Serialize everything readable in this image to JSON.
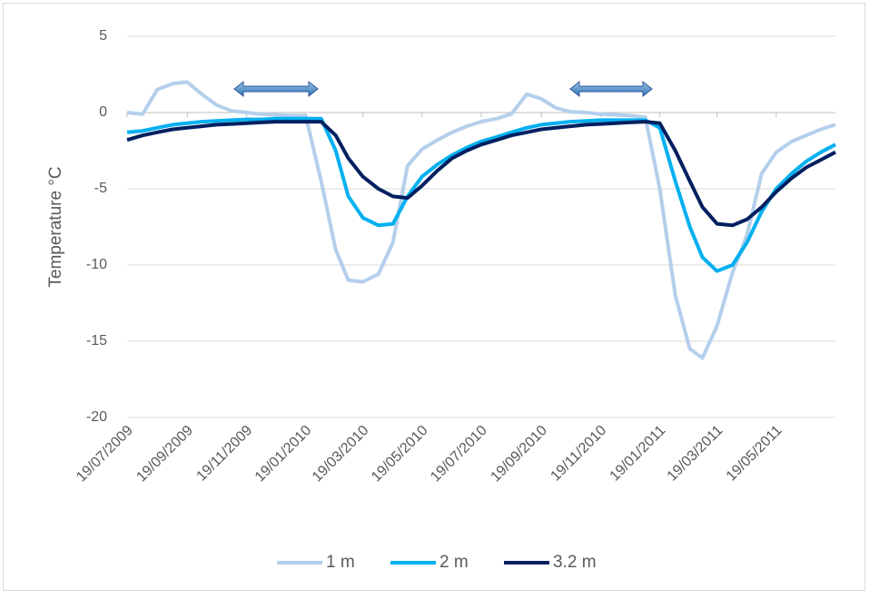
{
  "chart_data": {
    "type": "line",
    "y_label": "Temperature °C",
    "x": [
      "19/07/2009",
      "04/08/2009",
      "19/08/2009",
      "04/09/2009",
      "19/09/2009",
      "04/10/2009",
      "19/10/2009",
      "04/11/2009",
      "19/11/2009",
      "04/12/2009",
      "19/12/2009",
      "04/01/2010",
      "19/01/2010",
      "04/02/2010",
      "19/02/2010",
      "04/03/2010",
      "19/03/2010",
      "04/04/2010",
      "19/04/2010",
      "04/05/2010",
      "19/05/2010",
      "04/06/2010",
      "19/06/2010",
      "04/07/2010",
      "19/07/2010",
      "04/08/2010",
      "19/08/2010",
      "04/09/2010",
      "19/09/2010",
      "04/10/2010",
      "19/10/2010",
      "04/11/2010",
      "19/11/2010",
      "04/12/2010",
      "19/12/2010",
      "04/01/2011",
      "19/01/2011",
      "04/02/2011",
      "19/02/2011",
      "04/03/2011",
      "19/03/2011",
      "04/04/2011",
      "19/04/2011",
      "04/05/2011",
      "19/05/2011",
      "04/06/2011",
      "19/06/2011",
      "04/07/2011",
      "19/07/2011"
    ],
    "series": [
      {
        "name": "1 m",
        "color": "#b4cfeb",
        "values": [
          0,
          -0.1,
          1.5,
          1.9,
          2.0,
          1.2,
          0.5,
          0.1,
          0,
          -0.1,
          -0.15,
          -0.2,
          -0.2,
          -4.5,
          -9,
          -11,
          -11.1,
          -10.6,
          -8.5,
          -3.5,
          -2.4,
          -1.8,
          -1.3,
          -0.9,
          -0.6,
          -0.4,
          -0.1,
          1.2,
          0.9,
          0.3,
          0.05,
          0,
          -0.1,
          -0.15,
          -0.2,
          -0.3,
          -5,
          -12,
          -15.5,
          -16.1,
          -14,
          -10.5,
          -8,
          -4,
          -2.6,
          -1.9,
          -1.5,
          -1.1,
          -0.8
        ]
      },
      {
        "name": "2 m",
        "color": "#00b0f0",
        "values": [
          -1.3,
          -1.2,
          -1.0,
          -0.8,
          -0.7,
          -0.6,
          -0.55,
          -0.5,
          -0.45,
          -0.45,
          -0.4,
          -0.4,
          -0.4,
          -0.4,
          -2.5,
          -5.5,
          -6.9,
          -7.4,
          -7.3,
          -5.5,
          -4.2,
          -3.4,
          -2.8,
          -2.3,
          -1.9,
          -1.6,
          -1.3,
          -1.0,
          -0.8,
          -0.7,
          -0.6,
          -0.55,
          -0.5,
          -0.5,
          -0.5,
          -0.5,
          -1.0,
          -4.5,
          -7.5,
          -9.5,
          -10.4,
          -10,
          -8.5,
          -6.5,
          -5,
          -4,
          -3.2,
          -2.6,
          -2.1
        ]
      },
      {
        "name": "3.2 m",
        "color": "#002060",
        "values": [
          -1.8,
          -1.5,
          -1.3,
          -1.1,
          -1.0,
          -0.9,
          -0.8,
          -0.75,
          -0.7,
          -0.65,
          -0.6,
          -0.6,
          -0.6,
          -0.6,
          -1.5,
          -3.0,
          -4.2,
          -5.0,
          -5.5,
          -5.6,
          -4.8,
          -3.8,
          -3.0,
          -2.5,
          -2.1,
          -1.8,
          -1.5,
          -1.3,
          -1.1,
          -1.0,
          -0.9,
          -0.8,
          -0.75,
          -0.7,
          -0.65,
          -0.6,
          -0.7,
          -2.5,
          -4.5,
          -6.2,
          -7.3,
          -7.4,
          -7.0,
          -6.2,
          -5.2,
          -4.3,
          -3.6,
          -3.1,
          -2.6
        ]
      }
    ],
    "xlim": [
      "19/07/2009",
      "19/07/2011"
    ],
    "xticks": [
      "19/07/2009",
      "19/09/2009",
      "19/11/2009",
      "19/01/2010",
      "19/03/2010",
      "19/05/2010",
      "19/07/2010",
      "19/09/2010",
      "19/11/2010",
      "19/01/2011",
      "19/03/2011",
      "19/05/2011"
    ],
    "ylim": [
      -20,
      5
    ],
    "yticks": [
      5,
      0,
      -5,
      -10,
      -15,
      -20
    ],
    "grid": true,
    "legend": "bottom"
  }
}
